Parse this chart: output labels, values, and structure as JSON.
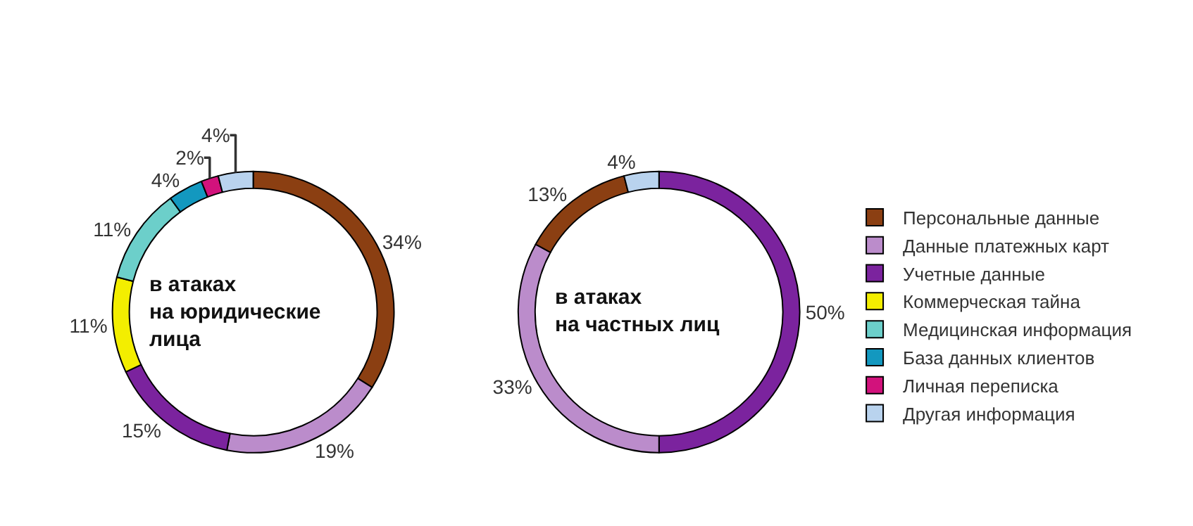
{
  "chart_data": [
    {
      "type": "donut",
      "categories": [
        "Персональные данные",
        "Данные платежных карт",
        "Учетные данные",
        "Коммерческая тайна",
        "Медицинская информация",
        "База данных клиентов",
        "Личная переписка",
        "Другая информация"
      ],
      "values": [
        34,
        19,
        15,
        11,
        11,
        4,
        2,
        4
      ],
      "colors": [
        "#8b3f12",
        "#bb8ccb",
        "#7b239e",
        "#f3ee00",
        "#6ccfca",
        "#1398bf",
        "#d2127c",
        "#b9d3ee"
      ],
      "value_labels": [
        "34%",
        "19%",
        "15%",
        "11%",
        "11%",
        "4%",
        "2%",
        "4%"
      ],
      "annotations": [
        "в атаках\nна юридические\nлица"
      ],
      "legend": "right"
    },
    {
      "type": "donut",
      "categories": [
        null,
        null,
        null,
        null
      ],
      "values": [
        50,
        33,
        13,
        4
      ],
      "colors": [
        "#7b239e",
        "#bb8ccb",
        "#8b3f12",
        "#b9d3ee"
      ],
      "value_labels": [
        "50%",
        "33%",
        "13%",
        "4%"
      ],
      "annotations": [
        "в атаках\nна частных лиц"
      ]
    }
  ]
}
